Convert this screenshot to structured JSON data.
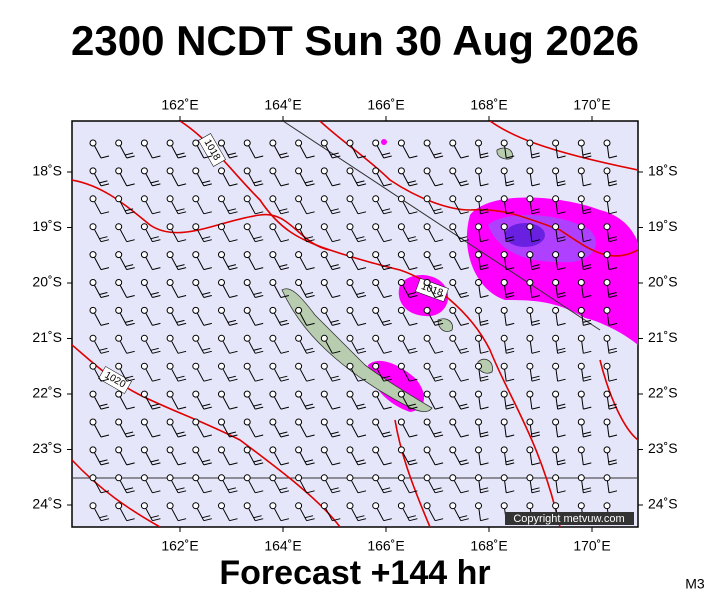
{
  "header": {
    "title": "2300 NCDT Sun 30 Aug 2026"
  },
  "map": {
    "lon_labels": [
      "162˚E",
      "164˚E",
      "166˚E",
      "168˚E",
      "170˚E"
    ],
    "lat_labels": [
      "18˚S",
      "19˚S",
      "20˚S",
      "21˚S",
      "22˚S",
      "23˚S",
      "24˚S"
    ],
    "contour_labels": [
      "1018",
      "1018",
      "1020"
    ],
    "copyright": "Copyright metvuw.com"
  },
  "footer": {
    "forecast": "Forecast +144 hr",
    "model": "M3"
  }
}
